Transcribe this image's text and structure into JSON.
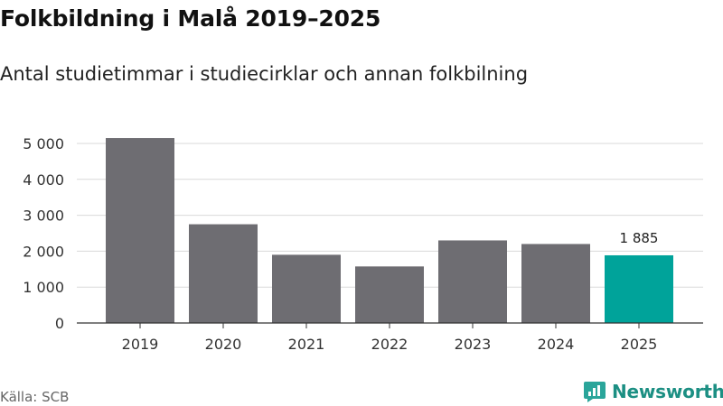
{
  "title": "Folkbildning i Malå 2019–2025",
  "subtitle": "Antal studietimmar i studiecirklar och annan folkbilning",
  "source": "Källa: SCB",
  "brand": "Newsworthy",
  "colors": {
    "bar": "#6e6d72",
    "highlight": "#00a39a",
    "grid": "#d9d9d9",
    "axis": "#333333",
    "brand": "#1c8f83"
  },
  "chart_data": {
    "type": "bar",
    "title": "Folkbildning i Malå 2019–2025",
    "subtitle": "Antal studietimmar i studiecirklar och annan folkbilning",
    "categories": [
      "2019",
      "2020",
      "2021",
      "2022",
      "2023",
      "2024",
      "2025"
    ],
    "values": [
      5150,
      2750,
      1900,
      1575,
      2300,
      2200,
      1885
    ],
    "highlight_index": 6,
    "data_labels": [
      {
        "index": 6,
        "text": "1 885"
      }
    ],
    "yticks": [
      0,
      1000,
      2000,
      3000,
      4000,
      5000
    ],
    "ytick_labels": [
      "0",
      "1 000",
      "2 000",
      "3 000",
      "4 000",
      "5 000"
    ],
    "ylim": [
      0,
      5000
    ],
    "xlabel": "",
    "ylabel": "",
    "grid": true,
    "legend": "none"
  }
}
